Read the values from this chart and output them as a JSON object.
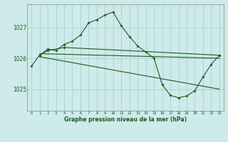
{
  "title": "Graphe pression niveau de la mer (hPa)",
  "bg_color": "#ceeaea",
  "grid_color": "#aed4d4",
  "line_color": "#1a5c1a",
  "xlim": [
    -0.5,
    23.5
  ],
  "ylim": [
    1024.3,
    1027.75
  ],
  "yticks": [
    1025,
    1026,
    1027
  ],
  "xticks": [
    0,
    1,
    2,
    3,
    4,
    5,
    6,
    7,
    8,
    9,
    10,
    11,
    12,
    13,
    14,
    15,
    16,
    17,
    18,
    19,
    20,
    21,
    22,
    23
  ],
  "series": [
    {
      "x": [
        0,
        1,
        2,
        3,
        4,
        5,
        6,
        7,
        8,
        9,
        10,
        11,
        12,
        13,
        14,
        15,
        16,
        17,
        18,
        19,
        20,
        21,
        22,
        23
      ],
      "y": [
        1025.75,
        1026.1,
        1026.3,
        1026.25,
        1026.45,
        1026.55,
        1026.75,
        1027.15,
        1027.25,
        1027.4,
        1027.5,
        1027.05,
        1026.7,
        1026.4,
        1026.2,
        1026.0,
        1025.15,
        1024.8,
        1024.72,
        1024.78,
        1024.95,
        1025.4,
        1025.8,
        1026.1
      ]
    },
    {
      "x": [
        1,
        2,
        4,
        23
      ],
      "y": [
        1026.1,
        1026.25,
        1026.35,
        1026.1
      ],
      "markers": true
    },
    {
      "x": [
        1,
        23
      ],
      "y": [
        1026.15,
        1026.0
      ],
      "markers": false
    },
    {
      "x": [
        1,
        23
      ],
      "y": [
        1026.05,
        1025.0
      ],
      "markers": false
    }
  ]
}
